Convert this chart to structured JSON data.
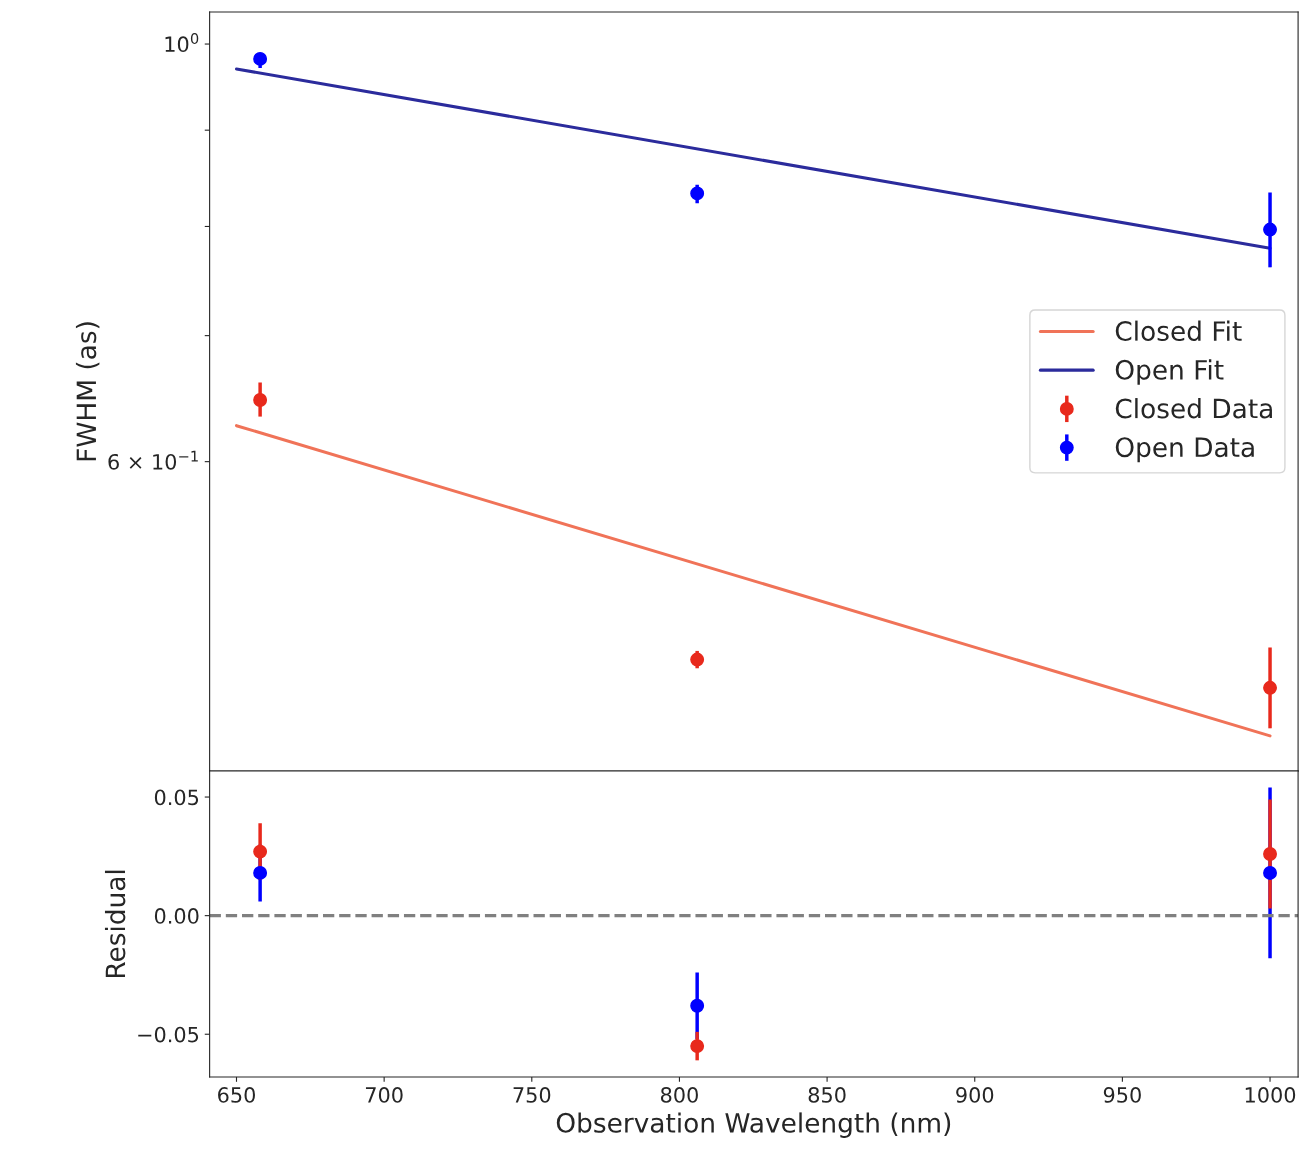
{
  "chart_data": [
    {
      "type": "scatter",
      "ylabel": "FWHM (as)",
      "log": "y",
      "xlim": [
        640.9,
        1009.5
      ],
      "ylim": [
        0.411,
        1.04
      ],
      "yticks": [
        {
          "value": 1,
          "label": "10$^{0}$"
        },
        {
          "value": 0.6,
          "label": "6 × 10$^{−1}$"
        },
        {
          "value": 0.7,
          "label": null
        },
        {
          "value": 0.8,
          "label": null
        },
        {
          "value": 0.9,
          "label": null
        }
      ],
      "tick_labels": "y",
      "legend": "center right",
      "series": [
        {
          "name": "Closed Fit",
          "type": "line",
          "color": "#f07358",
          "x": [
            650,
            1000
          ],
          "values": [
            0.627,
            0.429
          ]
        },
        {
          "name": "Open Fit",
          "type": "line",
          "color": "#2b2b9c",
          "x": [
            650,
            1000
          ],
          "values": [
            0.97,
            0.779
          ]
        },
        {
          "name": "Closed Data",
          "marker": "circle",
          "color": "#e8291c",
          "x": [
            658,
            806,
            1000
          ],
          "values": [
            0.647,
            0.471,
            0.455
          ],
          "errors": [
            [
              0.634,
              0.661
            ],
            [
              0.466,
              0.476
            ],
            [
              0.433,
              0.478
            ]
          ]
        },
        {
          "name": "Open Data",
          "marker": "circle",
          "color": "#0000ff",
          "x": [
            658,
            806,
            1000
          ],
          "values": [
            0.982,
            0.833,
            0.797
          ],
          "errors": [
            [
              0.971,
              0.989
            ],
            [
              0.823,
              0.842
            ],
            [
              0.761,
              0.834
            ]
          ]
        }
      ]
    },
    {
      "type": "scatter",
      "xlabel": "Observation Wavelength (nm)",
      "ylabel": "Residual",
      "xlim": [
        640.9,
        1009.5
      ],
      "ylim": [
        -0.068,
        0.061
      ],
      "xticks": [
        650,
        700,
        750,
        800,
        850,
        900,
        950,
        1000
      ],
      "yticks": [
        {
          "value": -0.05,
          "label": "−0.05"
        },
        {
          "value": 0,
          "label": "0.00"
        },
        {
          "value": 0.05,
          "label": "0.05"
        }
      ],
      "marker": "circle",
      "ref_lines": [
        {
          "axis": "y",
          "value": 0,
          "color": "#808080",
          "line_style": "dashed"
        }
      ],
      "series": [
        {
          "color": "#0000ff",
          "x": [
            658,
            806,
            1000
          ],
          "values": [
            0.018,
            -0.038,
            0.018
          ],
          "errors": [
            0.012,
            0.014,
            0.036
          ]
        },
        {
          "color": "#e8291c",
          "x": [
            658,
            806,
            1000
          ],
          "values": [
            0.027,
            -0.055,
            0.026
          ],
          "errors": [
            0.012,
            0.006,
            0.023
          ]
        }
      ]
    }
  ]
}
